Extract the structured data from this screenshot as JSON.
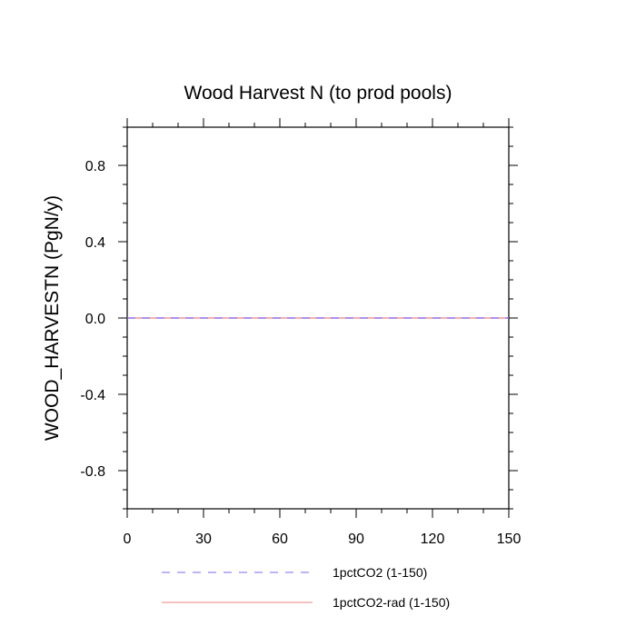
{
  "chart_data": {
    "type": "line",
    "title": "Wood Harvest N (to prod pools)",
    "xlabel": "",
    "ylabel": "WOOD_HARVESTN  (PgN/y)",
    "xlim": [
      0,
      150
    ],
    "ylim": [
      -1.0,
      1.0
    ],
    "x_ticks": [
      0,
      30,
      60,
      90,
      120,
      150
    ],
    "x_tick_labels": [
      "0",
      "30",
      "60",
      "90",
      "120",
      "150"
    ],
    "y_ticks": [
      -0.8,
      -0.4,
      0.0,
      0.4,
      0.8
    ],
    "y_tick_labels": [
      "-0.8",
      "-0.4",
      "0.0",
      "0.4",
      "0.8"
    ],
    "x_minor_step": 10,
    "y_minor_step": 0.1,
    "grid": false,
    "legend_position": "bottom",
    "series": [
      {
        "name": "1pctCO2 (1-150)",
        "color": "#7b68ee",
        "style": "dashed",
        "x": [
          0,
          150
        ],
        "values": [
          0.0,
          0.0
        ]
      },
      {
        "name": "1pctCO2-rad (1-150)",
        "color": "#f08080",
        "style": "solid",
        "x": [
          0,
          150
        ],
        "values": [
          0.0,
          0.0
        ]
      }
    ]
  }
}
